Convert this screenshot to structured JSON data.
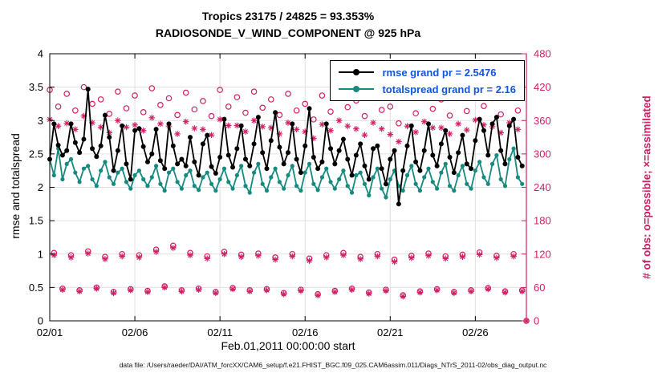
{
  "title": {
    "line1": "Tropics 23175 / 24825 = 93.353%",
    "line2": "RADIOSONDE_V_WIND_COMPONENT @ 925 hPa"
  },
  "caption": "data file: /Users/raeder/DAI/ATM_forcXX/CAM6_setup/f.e21.FHIST_BGC.f09_025.CAM6assim.011/Diags_NTrS_2011-02/obs_diag_output.nc",
  "chart_data": {
    "type": "line",
    "title": "Tropics 23175 / 24825 = 93.353%  RADIOSONDE_V_WIND_COMPONENT @ 925 hPa",
    "xlabel": "Feb.01,2011 00:00:00 start",
    "ylabel_left": "rmse and totalspread",
    "ylabel_right": "# of obs: o=possible; ×=assimilated",
    "xlim": [
      0,
      28
    ],
    "ylim_left": [
      0,
      4
    ],
    "ylim_right": [
      0,
      480
    ],
    "grid": true,
    "legend_position": "top-right-inside",
    "x_step": 0.25,
    "x_unit": "days since Feb 1, 2011 00:00 UTC (4 obs times per day)",
    "xticks": {
      "values": [
        0,
        5,
        10,
        15,
        20,
        25
      ],
      "labels": [
        "02/01",
        "02/06",
        "02/11",
        "02/16",
        "02/21",
        "02/26"
      ]
    },
    "yticks_left": {
      "values": [
        0,
        0.5,
        1,
        1.5,
        2,
        2.5,
        3,
        3.5,
        4
      ],
      "labels": [
        "0",
        "0.5",
        "1",
        "1.5",
        "2",
        "2.5",
        "3",
        "3.5",
        "4"
      ]
    },
    "yticks_right": {
      "values": [
        0,
        60,
        120,
        180,
        240,
        300,
        360,
        420,
        480
      ],
      "labels": [
        "0",
        "60",
        "120",
        "180",
        "240",
        "300",
        "360",
        "420",
        "480"
      ]
    },
    "colors": {
      "rmse": "#000000",
      "spread": "#178a80",
      "obs": "#d01f64",
      "legend_text": "#1155dd",
      "grid": "#e0e0e0"
    },
    "legend": [
      {
        "label": "rmse grand pr = 2.5476",
        "color": "#000000",
        "marker": "filled-circle"
      },
      {
        "label": "totalspread grand pr = 2.16",
        "color": "#178a80",
        "marker": "filled-circle"
      }
    ],
    "series": [
      {
        "name": "rmse",
        "axis": "left",
        "color": "#000000",
        "marker": "filled-circle",
        "line": true,
        "values": [
          2.42,
          2.95,
          2.63,
          2.48,
          2.55,
          2.95,
          2.67,
          2.52,
          2.72,
          3.47,
          2.58,
          2.46,
          2.62,
          3.08,
          2.75,
          2.25,
          2.55,
          2.92,
          2.35,
          2.12,
          2.85,
          2.88,
          2.61,
          2.38,
          2.5,
          2.87,
          2.4,
          2.28,
          2.95,
          2.62,
          2.35,
          2.42,
          2.32,
          2.75,
          2.38,
          2.18,
          2.65,
          2.78,
          2.31,
          2.21,
          2.45,
          3.02,
          2.48,
          2.3,
          2.58,
          2.92,
          2.42,
          2.32,
          2.65,
          3.05,
          2.52,
          2.28,
          2.7,
          3.12,
          2.6,
          2.35,
          2.52,
          2.95,
          2.42,
          2.22,
          2.62,
          3.18,
          2.45,
          2.28,
          2.38,
          2.95,
          2.58,
          2.35,
          2.55,
          2.72,
          2.42,
          2.18,
          2.48,
          2.65,
          2.32,
          2.12,
          2.58,
          2.62,
          2.28,
          2.05,
          2.42,
          2.55,
          1.75,
          2.25,
          2.62,
          2.92,
          2.38,
          2.25,
          2.55,
          2.95,
          2.48,
          2.32,
          2.65,
          2.85,
          2.45,
          2.22,
          2.52,
          2.78,
          2.35,
          2.28,
          2.7,
          3.02,
          2.85,
          2.48,
          2.95,
          3.05,
          2.55,
          2.35,
          2.92,
          3.02,
          2.45,
          2.32
        ]
      },
      {
        "name": "totalspread",
        "axis": "left",
        "color": "#178a80",
        "marker": "filled-circle",
        "line": true,
        "values": [
          2.42,
          2.18,
          2.58,
          2.12,
          2.35,
          2.42,
          2.22,
          2.08,
          2.28,
          2.32,
          2.12,
          2.02,
          2.25,
          2.38,
          2.15,
          2.05,
          2.22,
          2.28,
          2.08,
          1.98,
          2.18,
          2.25,
          2.12,
          2.02,
          2.15,
          2.32,
          2.05,
          1.95,
          2.22,
          2.28,
          2.08,
          1.98,
          2.18,
          2.25,
          2.02,
          1.96,
          2.15,
          2.22,
          2.05,
          1.95,
          2.12,
          2.28,
          2.08,
          1.98,
          2.18,
          2.32,
          2.02,
          1.92,
          2.22,
          2.35,
          2.05,
          1.95,
          2.15,
          2.28,
          2.08,
          1.98,
          2.18,
          2.32,
          2.02,
          1.95,
          2.22,
          2.35,
          2.05,
          1.96,
          2.15,
          2.28,
          2.08,
          1.98,
          2.12,
          2.25,
          2.02,
          1.92,
          2.18,
          2.22,
          2.05,
          1.88,
          2.15,
          2.28,
          1.98,
          1.85,
          2.12,
          2.25,
          2.02,
          1.95,
          2.18,
          2.32,
          2.05,
          1.95,
          2.15,
          2.28,
          2.08,
          1.98,
          2.22,
          2.35,
          2.02,
          1.95,
          2.18,
          2.32,
          2.05,
          1.98,
          2.25,
          2.38,
          2.15,
          2.05,
          2.35,
          2.48,
          2.12,
          2.02,
          2.42,
          2.58,
          2.15,
          2.05
        ]
      },
      {
        "name": "possible",
        "axis": "right",
        "color": "#d01f64",
        "marker": "open-circle",
        "line": false,
        "values": [
          415,
          122,
          385,
          58,
          408,
          118,
          378,
          55,
          420,
          125,
          390,
          60,
          398,
          115,
          372,
          52,
          412,
          120,
          382,
          57,
          405,
          118,
          375,
          54,
          418,
          128,
          388,
          62,
          400,
          135,
          370,
          55,
          410,
          122,
          380,
          58,
          395,
          116,
          368,
          52,
          415,
          124,
          385,
          59,
          402,
          119,
          374,
          55,
          412,
          121,
          383,
          57,
          398,
          114,
          370,
          50,
          408,
          120,
          378,
          56,
          390,
          112,
          362,
          48,
          405,
          118,
          376,
          54,
          412,
          122,
          384,
          58,
          396,
          115,
          368,
          51,
          408,
          120,
          379,
          56,
          385,
          110,
          355,
          46,
          402,
          117,
          373,
          53,
          410,
          121,
          381,
          57,
          398,
          116,
          369,
          52,
          406,
          119,
          377,
          55,
          414,
          123,
          386,
          59,
          400,
          117,
          371,
          53,
          408,
          120,
          378,
          55,
          0
        ]
      },
      {
        "name": "assimilated",
        "axis": "right",
        "color": "#d01f64",
        "marker": "asterisk",
        "line": false,
        "values": [
          362,
          118,
          350,
          56,
          355,
          114,
          344,
          53,
          368,
          121,
          356,
          58,
          348,
          111,
          338,
          50,
          360,
          116,
          348,
          55,
          352,
          114,
          342,
          52,
          365,
          124,
          354,
          60,
          350,
          131,
          336,
          53,
          358,
          118,
          346,
          56,
          344,
          112,
          334,
          50,
          362,
          120,
          351,
          57,
          351,
          115,
          340,
          53,
          360,
          117,
          349,
          55,
          347,
          110,
          336,
          48,
          356,
          116,
          344,
          54,
          340,
          108,
          328,
          46,
          353,
          114,
          342,
          52,
          360,
          118,
          350,
          56,
          345,
          111,
          334,
          49,
          356,
          116,
          345,
          54,
          335,
          106,
          322,
          44,
          350,
          113,
          339,
          51,
          358,
          117,
          347,
          55,
          347,
          112,
          336,
          50,
          354,
          115,
          343,
          53,
          361,
          119,
          352,
          57,
          349,
          113,
          338,
          51,
          356,
          116,
          344,
          53,
          0
        ]
      }
    ]
  }
}
